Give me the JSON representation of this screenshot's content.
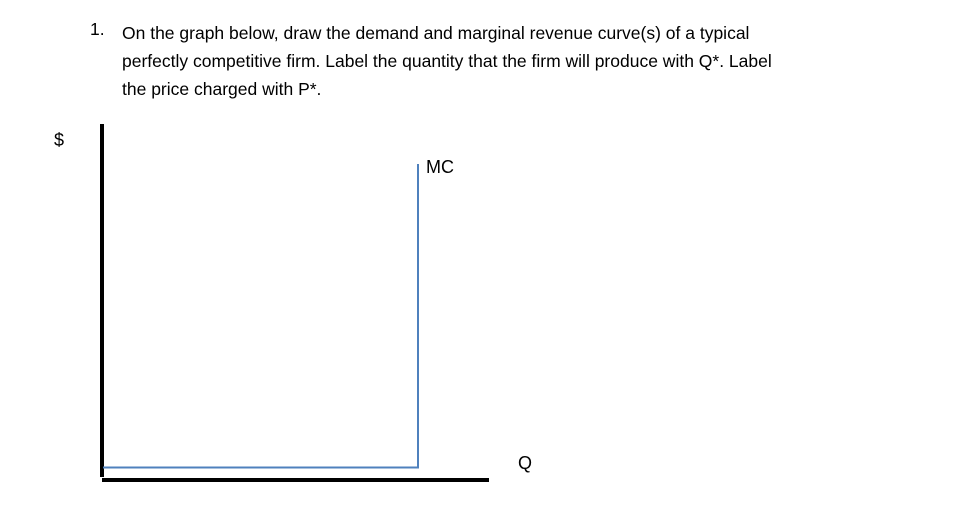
{
  "question": {
    "number": "1.",
    "lines": [
      "On the graph below, draw the demand and marginal revenue curve(s) of a typical",
      "perfectly competitive firm.  Label the quantity that the firm will produce with Q*.  Label",
      "the price charged with P*."
    ]
  },
  "graph": {
    "y_axis_label": "$",
    "x_axis_label": "Q",
    "curves": [
      {
        "label": "MC",
        "shape": "horizontal then vertical (L-shaped)",
        "color": "#4f81bd"
      }
    ],
    "axis_color": "#000000"
  }
}
